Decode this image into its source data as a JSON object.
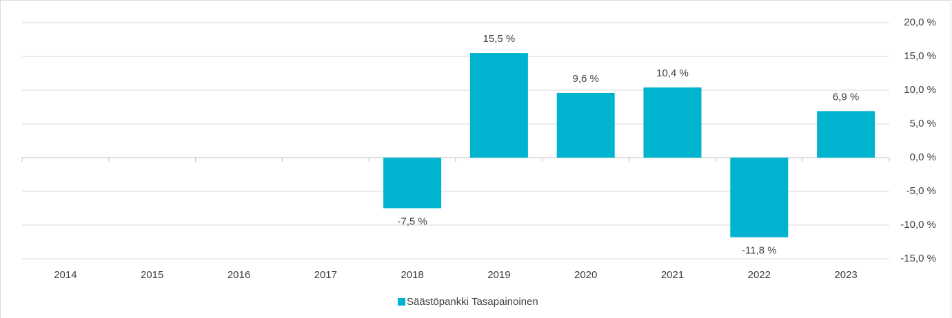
{
  "chart_data": {
    "type": "bar",
    "categories": [
      "2014",
      "2015",
      "2016",
      "2017",
      "2018",
      "2019",
      "2020",
      "2021",
      "2022",
      "2023"
    ],
    "series": [
      {
        "name": "Säästöpankki Tasapainoinen",
        "color": "#00b3cf",
        "values": [
          null,
          null,
          null,
          null,
          -7.5,
          15.5,
          9.6,
          10.4,
          -11.8,
          6.9
        ],
        "value_labels": [
          null,
          null,
          null,
          null,
          "-7,5 %",
          "15,5 %",
          "9,6 %",
          "10,4 %",
          "-11,8 %",
          "6,9 %"
        ]
      }
    ],
    "ylim": [
      -15,
      20
    ],
    "yticks": [
      {
        "value": 20,
        "label": "20,0 %"
      },
      {
        "value": 15,
        "label": "15,0 %"
      },
      {
        "value": 10,
        "label": "10,0 %"
      },
      {
        "value": 5,
        "label": "5,0 %"
      },
      {
        "value": 0,
        "label": "0,0 %"
      },
      {
        "value": -5,
        "label": "-5,0 %"
      },
      {
        "value": -10,
        "label": "-10,0 %"
      },
      {
        "value": -15,
        "label": "-15,0 %"
      }
    ],
    "grid": true,
    "legend": "bottom"
  }
}
